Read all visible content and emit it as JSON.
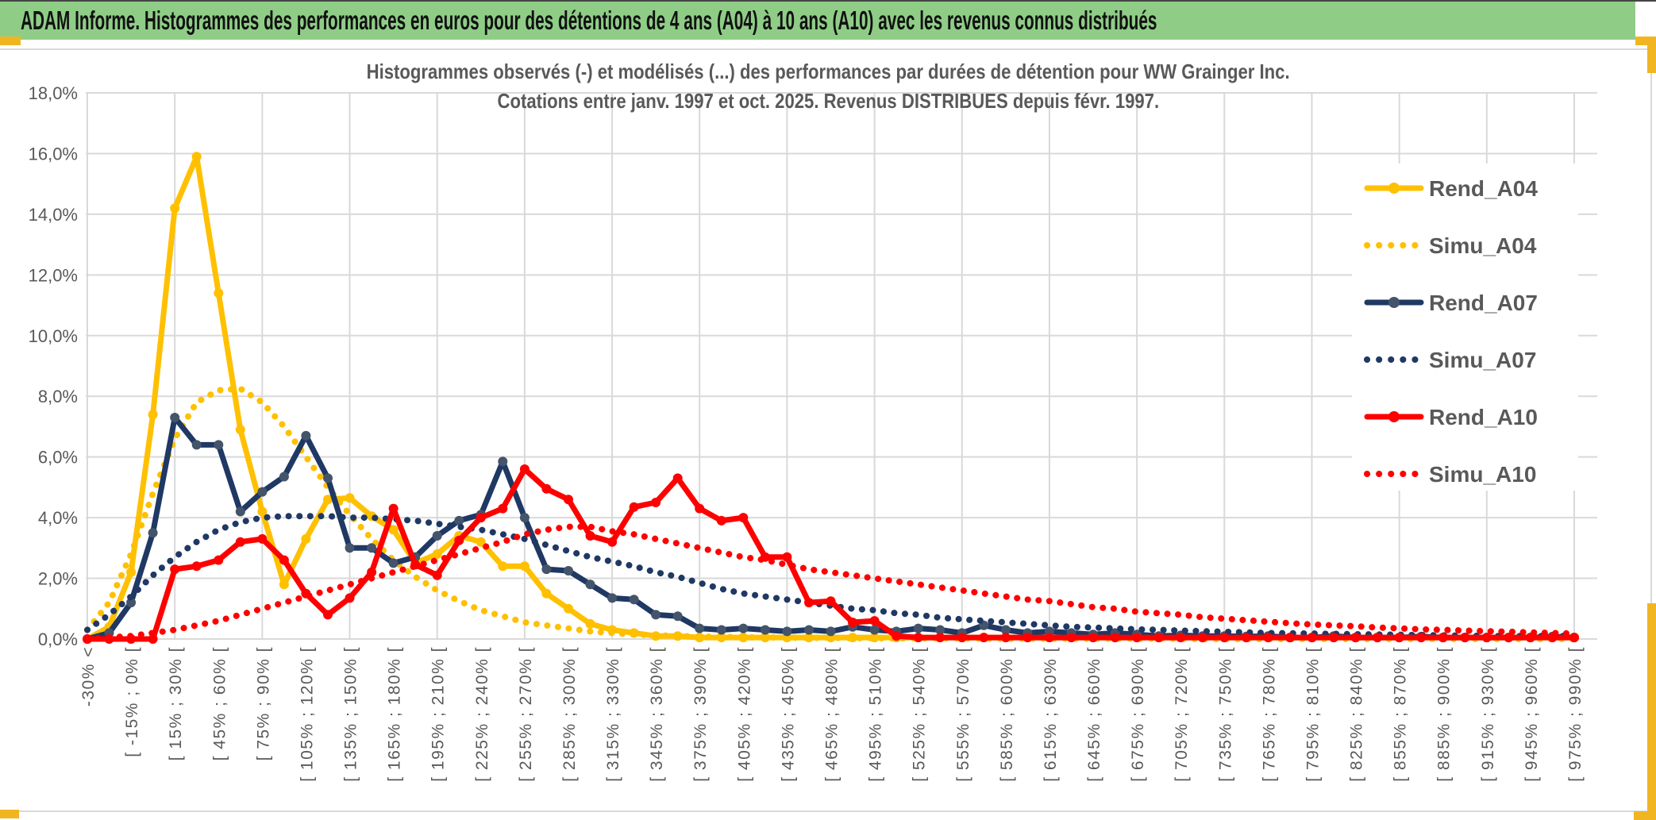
{
  "banner": {
    "title": "ADAM Informe. Histogrammes des performances en euros pour des détentions de 4 ans (A04) à 10 ans (A10) avec les revenus connus distribués"
  },
  "chart_data": {
    "type": "line",
    "title": "Histogrammes observés (-) et modélisés (...) des performances par durées de détention pour WW Grainger Inc.",
    "subtitle": "Cotations entre janv. 1997 et oct. 2025. Revenus DISTRIBUES depuis févr. 1997.",
    "xlabel": "",
    "ylabel": "",
    "ylim": [
      0,
      18
    ],
    "y_tick_step": 2,
    "grid": true,
    "legend_position": "right-inside",
    "y_tick_labels": [
      "0,0%",
      "2,0%",
      "4,0%",
      "6,0%",
      "8,0%",
      "10,0%",
      "12,0%",
      "14,0%",
      "16,0%",
      "18,0%"
    ],
    "x_tick_labels": [
      "-30% <",
      "[ -15% ; 0% [",
      "[ 15% ; 30% [",
      "[ 45% ; 60% [",
      "[ 75% ; 90% [",
      "[ 105% ; 120% [",
      "[ 135% ; 150% [",
      "[ 165% ; 180% [",
      "[ 195% ; 210% [",
      "[ 225% ; 240% [",
      "[ 255% ; 270% [",
      "[ 285% ; 300% [",
      "[ 315% ; 330% [",
      "[ 345% ; 360% [",
      "[ 375% ; 390% [",
      "[ 405% ; 420% [",
      "[ 435% ; 450% [",
      "[ 465% ; 480% [",
      "[ 495% ; 510% [",
      "[ 525% ; 540% [",
      "[ 555% ; 570% [",
      "[ 585% ; 600% [",
      "[ 615% ; 630% [",
      "[ 645% ; 660% [",
      "[ 675% ; 690% [",
      "[ 705% ; 720% [",
      "[ 735% ; 750% [",
      "[ 765% ; 780% [",
      "[ 795% ; 810% [",
      "[ 825% ; 840% [",
      "[ 855% ; 870% [",
      "[ 885% ; 900% [",
      "[ 915% ; 930% [",
      "[ 945% ; 960% [",
      "[ 975% ; 990% ["
    ],
    "bins_per_tick_label": 2,
    "num_points": 69,
    "series": [
      {
        "name": "Rend_A04",
        "style": "solid",
        "color": "#FFC000",
        "marker_color": "#FFC000",
        "values": [
          0,
          0.4,
          2.2,
          7.4,
          14.2,
          15.9,
          11.4,
          6.9,
          4.2,
          1.8,
          3.3,
          4.6,
          4.65,
          4.05,
          3.6,
          2.5,
          2.8,
          3.4,
          3.2,
          2.4,
          2.4,
          1.5,
          1.0,
          0.5,
          0.3,
          0.2,
          0.1,
          0.1,
          0.05,
          0.05,
          0.05,
          0.05,
          0.05,
          0.05,
          0.05,
          0.05,
          0.05,
          0.05,
          0.05,
          0.05,
          0.05,
          0.05,
          0.05,
          0.05,
          0.05,
          0.05,
          0.05,
          0.05,
          0.05,
          0.05,
          0.05,
          0.05,
          0.05,
          0.05,
          0.05,
          0.05,
          0.05,
          0.05,
          0.05,
          0.05,
          0.05,
          0.05,
          0.05,
          0.05,
          0.05,
          0.05,
          0.05,
          0.05,
          0.05
        ]
      },
      {
        "name": "Simu_A04",
        "style": "dotted",
        "color": "#FFC000",
        "values": [
          0.3,
          1.2,
          2.8,
          4.8,
          6.6,
          7.8,
          8.2,
          8.25,
          7.8,
          7.0,
          6.0,
          5.0,
          4.1,
          3.3,
          2.6,
          2.05,
          1.6,
          1.25,
          0.95,
          0.75,
          0.55,
          0.45,
          0.35,
          0.25,
          0.2,
          0.15,
          0.12,
          0.1,
          0.08,
          0.07,
          0.06,
          0.05,
          0.05,
          0.04,
          0.04,
          0.03,
          0.03,
          0.02,
          0.02,
          0.02,
          0.02,
          0.01,
          0.01,
          0.01,
          0.01,
          0.01,
          0.01,
          0.01,
          0.01,
          0.01,
          0.01,
          0,
          0,
          0,
          0,
          0,
          0,
          0,
          0,
          0,
          0,
          0,
          0,
          0,
          0,
          0,
          0,
          0,
          0
        ]
      },
      {
        "name": "Rend_A07",
        "style": "solid",
        "color": "#1F3864",
        "marker_color": "#44546A",
        "values": [
          0,
          0.2,
          1.2,
          3.5,
          7.3,
          6.4,
          6.4,
          4.2,
          4.85,
          5.35,
          6.7,
          5.3,
          3.0,
          3.0,
          2.5,
          2.7,
          3.4,
          3.9,
          4.1,
          5.85,
          4.0,
          2.3,
          2.25,
          1.8,
          1.35,
          1.3,
          0.8,
          0.75,
          0.35,
          0.3,
          0.35,
          0.3,
          0.25,
          0.3,
          0.25,
          0.4,
          0.3,
          0.25,
          0.35,
          0.3,
          0.2,
          0.45,
          0.3,
          0.2,
          0.25,
          0.2,
          0.15,
          0.2,
          0.15,
          0.1,
          0.12,
          0.1,
          0.1,
          0.08,
          0.1,
          0.05,
          0.05,
          0.1,
          0.05,
          0.05,
          0.05,
          0.08,
          0.05,
          0.05,
          0.05,
          0.05,
          0.05,
          0.08,
          0.05
        ]
      },
      {
        "name": "Simu_A07",
        "style": "dotted",
        "color": "#1F3864",
        "values": [
          0.3,
          0.8,
          1.4,
          2.1,
          2.7,
          3.2,
          3.6,
          3.85,
          4.0,
          4.05,
          4.05,
          4.05,
          4.0,
          4.0,
          3.95,
          3.9,
          3.8,
          3.7,
          3.6,
          3.45,
          3.3,
          3.1,
          2.9,
          2.7,
          2.55,
          2.4,
          2.2,
          2.05,
          1.85,
          1.65,
          1.5,
          1.4,
          1.3,
          1.2,
          1.1,
          1.0,
          0.95,
          0.85,
          0.8,
          0.7,
          0.65,
          0.6,
          0.55,
          0.5,
          0.45,
          0.4,
          0.38,
          0.35,
          0.32,
          0.3,
          0.28,
          0.26,
          0.24,
          0.22,
          0.2,
          0.19,
          0.18,
          0.17,
          0.16,
          0.15,
          0.14,
          0.13,
          0.12,
          0.11,
          0.1,
          0.1,
          0.1,
          0.1,
          0.1
        ]
      },
      {
        "name": "Rend_A10",
        "style": "solid",
        "color": "#FF0000",
        "marker_color": "#FF0000",
        "values": [
          0,
          0,
          0,
          0,
          2.3,
          2.4,
          2.6,
          3.2,
          3.3,
          2.6,
          1.5,
          0.8,
          1.35,
          2.2,
          4.3,
          2.45,
          2.1,
          3.25,
          4.0,
          4.3,
          5.6,
          4.95,
          4.6,
          3.4,
          3.2,
          4.35,
          4.5,
          5.3,
          4.3,
          3.9,
          4.0,
          2.7,
          2.7,
          1.2,
          1.25,
          0.55,
          0.6,
          0.1,
          0.05,
          0.05,
          0.05,
          0.05,
          0.05,
          0.05,
          0.05,
          0.05,
          0.05,
          0.05,
          0.05,
          0.05,
          0.05,
          0.05,
          0.05,
          0.05,
          0.05,
          0.05,
          0.05,
          0.05,
          0.05,
          0.05,
          0.05,
          0.05,
          0.05,
          0.05,
          0.05,
          0.05,
          0.05,
          0.05,
          0.05
        ]
      },
      {
        "name": "Simu_A10",
        "style": "dotted",
        "color": "#FF0000",
        "values": [
          0,
          0.05,
          0.1,
          0.2,
          0.3,
          0.45,
          0.6,
          0.8,
          1.0,
          1.2,
          1.4,
          1.6,
          1.8,
          2.0,
          2.2,
          2.4,
          2.6,
          2.8,
          3.0,
          3.2,
          3.45,
          3.6,
          3.7,
          3.7,
          3.55,
          3.45,
          3.3,
          3.15,
          3.0,
          2.85,
          2.7,
          2.6,
          2.45,
          2.3,
          2.2,
          2.1,
          2.0,
          1.9,
          1.8,
          1.7,
          1.6,
          1.5,
          1.4,
          1.3,
          1.25,
          1.15,
          1.05,
          1.0,
          0.9,
          0.85,
          0.8,
          0.72,
          0.67,
          0.62,
          0.57,
          0.52,
          0.48,
          0.45,
          0.42,
          0.38,
          0.35,
          0.32,
          0.3,
          0.28,
          0.26,
          0.24,
          0.22,
          0.2,
          0.18
        ]
      }
    ],
    "colors": {
      "banner_green": "#8FCD87",
      "gold_accent": "#F0B521",
      "grid_gray": "#D9D9D9",
      "axis_text_gray": "#595959"
    }
  }
}
